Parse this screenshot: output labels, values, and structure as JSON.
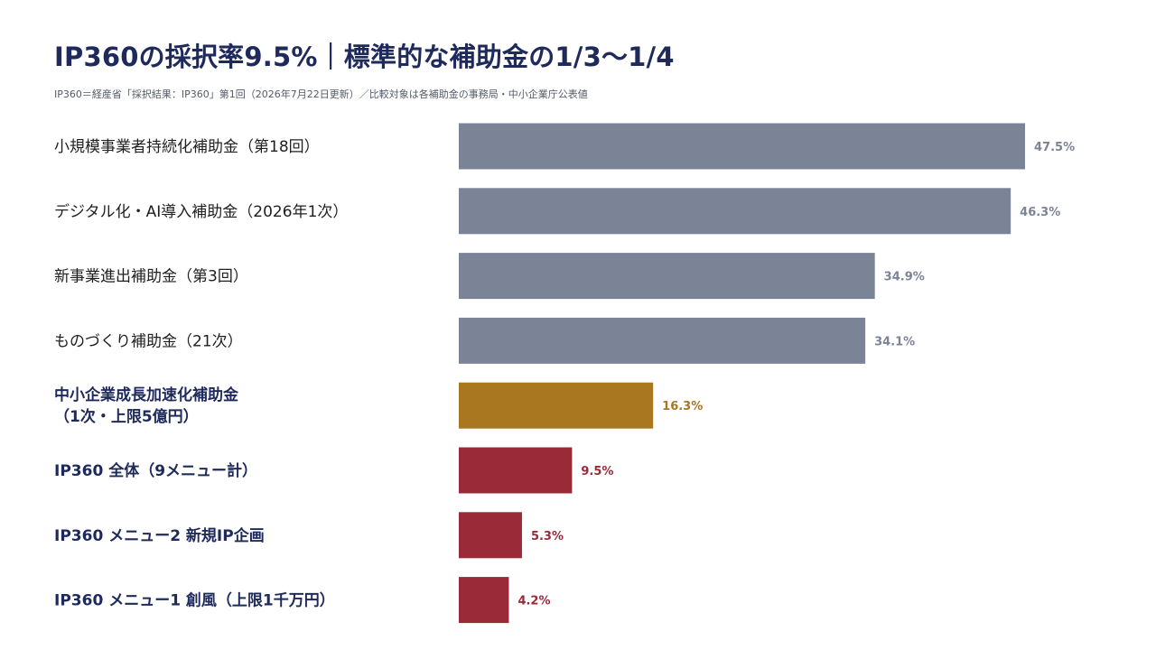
{
  "title": "IP360の採択率9.5%｜標準的な補助金の1/3〜1/4",
  "subtitle": "IP360＝経産省「採択結果：IP360」第1回（2026年7月22日更新）／比較対象は各補助金の事務局・中小企業庁公表値",
  "colors": {
    "title": "#1f2a5c",
    "subtitle": "#555a66",
    "normal_bar": "#7b8396",
    "highlight_bar": "#a87720",
    "ip360_bar": "#9a2a38",
    "normal_text": "#1f1f1f",
    "emphasis_text": "#1f2a5c"
  },
  "chart_data": {
    "type": "bar",
    "orientation": "horizontal",
    "xlim": [
      0,
      50
    ],
    "grid": false,
    "legend": "none",
    "unit": "%",
    "categories": [
      [
        "小規模事業者持続化補助金（第18回）"
      ],
      [
        "デジタル化・AI導入補助金（2026年1次）"
      ],
      [
        "新事業進出補助金（第3回）"
      ],
      [
        "ものづくり補助金（21次）"
      ],
      [
        "中小企業成長加速化補助金",
        "（1次・上限5億円）"
      ],
      [
        "IP360 全体（9メニュー計）"
      ],
      [
        "IP360 メニュー2 新規IP企画"
      ],
      [
        "IP360 メニュー1 創風（上限1千万円）"
      ]
    ],
    "values": [
      47.5,
      46.3,
      34.9,
      34.1,
      16.3,
      9.5,
      5.3,
      4.2
    ],
    "value_labels": [
      "47.5%",
      "46.3%",
      "34.9%",
      "34.1%",
      "16.3%",
      "9.5%",
      "5.3%",
      "4.2%"
    ],
    "groups": [
      "normal",
      "normal",
      "normal",
      "normal",
      "highlight",
      "ip360",
      "ip360",
      "ip360"
    ]
  }
}
